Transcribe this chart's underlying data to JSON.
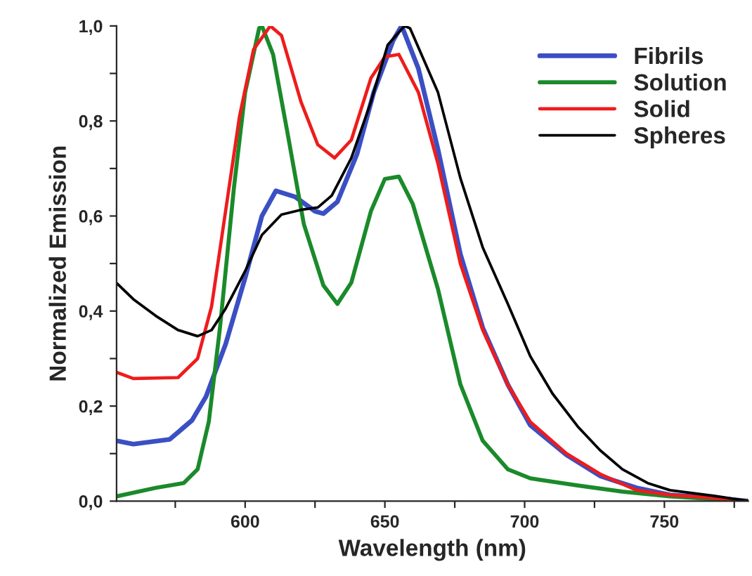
{
  "chart_data": {
    "type": "line",
    "xlabel": "Wavelength (nm)",
    "ylabel": "Normalized Emission",
    "xlim": [
      554,
      780
    ],
    "ylim": [
      0,
      1
    ],
    "xticks": [
      {
        "value": 575,
        "label": null
      },
      600,
      {
        "value": 625,
        "label": null
      },
      650,
      {
        "value": 675,
        "label": null
      },
      700,
      {
        "value": 725,
        "label": null
      },
      750,
      {
        "value": 775,
        "label": null
      }
    ],
    "yticks": [
      {
        "value": 0,
        "label": "0,0"
      },
      {
        "value": 0.1,
        "label": null
      },
      {
        "value": 0.2,
        "label": "0,2"
      },
      {
        "value": 0.3,
        "label": null
      },
      {
        "value": 0.4,
        "label": "0,4"
      },
      {
        "value": 0.5,
        "label": null
      },
      {
        "value": 0.6,
        "label": "0,6"
      },
      {
        "value": 0.7,
        "label": null
      },
      {
        "value": 0.8,
        "label": "0,8"
      },
      {
        "value": 0.9,
        "label": null
      },
      {
        "value": 1.0,
        "label": "1,0"
      }
    ],
    "grid": false,
    "legend": "top right",
    "marker": "none",
    "line_style": "solid",
    "series": [
      {
        "name": "Fibrils",
        "color": "#3b4fc4",
        "x": [
          554,
          560,
          573,
          581,
          586,
          593,
          600,
          606,
          611,
          618,
          625,
          628,
          633,
          640,
          646,
          653,
          656,
          662,
          669,
          677,
          685,
          694,
          702,
          715,
          727,
          740,
          752,
          769,
          780
        ],
        "values": [
          0.127,
          0.12,
          0.13,
          0.17,
          0.22,
          0.33,
          0.47,
          0.6,
          0.653,
          0.64,
          0.61,
          0.605,
          0.63,
          0.73,
          0.86,
          0.97,
          1.0,
          0.91,
          0.74,
          0.52,
          0.365,
          0.245,
          0.16,
          0.097,
          0.053,
          0.028,
          0.013,
          0.006,
          0.0
        ]
      },
      {
        "name": "Solution",
        "color": "#1a8a2a",
        "x": [
          554,
          568,
          578,
          583,
          587,
          591,
          596,
          600,
          605,
          606,
          610,
          615,
          621,
          628,
          633,
          638,
          645,
          650,
          655,
          660,
          669,
          677,
          685,
          694,
          702,
          719,
          735,
          752,
          780
        ],
        "values": [
          0.01,
          0.028,
          0.038,
          0.067,
          0.167,
          0.365,
          0.66,
          0.86,
          0.995,
          1.0,
          0.94,
          0.78,
          0.583,
          0.454,
          0.415,
          0.46,
          0.61,
          0.678,
          0.683,
          0.625,
          0.446,
          0.246,
          0.127,
          0.067,
          0.048,
          0.033,
          0.02,
          0.01,
          0.0
        ]
      },
      {
        "name": "Solid",
        "color": "#ee1c1c",
        "x": [
          554,
          560,
          576,
          583,
          588,
          593,
          598,
          603,
          609,
          613,
          620,
          626,
          632,
          638,
          645,
          650,
          655,
          662,
          669,
          677,
          685,
          694,
          702,
          715,
          727,
          740,
          752,
          769,
          780
        ],
        "values": [
          0.271,
          0.258,
          0.26,
          0.3,
          0.41,
          0.61,
          0.81,
          0.95,
          1.0,
          0.98,
          0.84,
          0.75,
          0.722,
          0.76,
          0.89,
          0.935,
          0.94,
          0.86,
          0.71,
          0.5,
          0.36,
          0.245,
          0.167,
          0.1,
          0.057,
          0.023,
          0.013,
          0.006,
          0.0
        ]
      },
      {
        "name": "Spheres",
        "color": "#000000",
        "x": [
          554,
          560,
          568,
          576,
          583,
          588,
          593,
          600,
          606,
          613,
          620,
          626,
          631,
          638,
          645,
          651,
          657,
          659,
          669,
          677,
          685,
          694,
          702,
          710,
          719,
          727,
          735,
          744,
          752,
          769,
          780
        ],
        "values": [
          0.459,
          0.425,
          0.39,
          0.36,
          0.347,
          0.36,
          0.405,
          0.484,
          0.56,
          0.603,
          0.613,
          0.618,
          0.643,
          0.722,
          0.84,
          0.96,
          1.0,
          0.995,
          0.86,
          0.68,
          0.534,
          0.415,
          0.305,
          0.226,
          0.157,
          0.107,
          0.067,
          0.038,
          0.023,
          0.01,
          0.0
        ]
      }
    ]
  }
}
